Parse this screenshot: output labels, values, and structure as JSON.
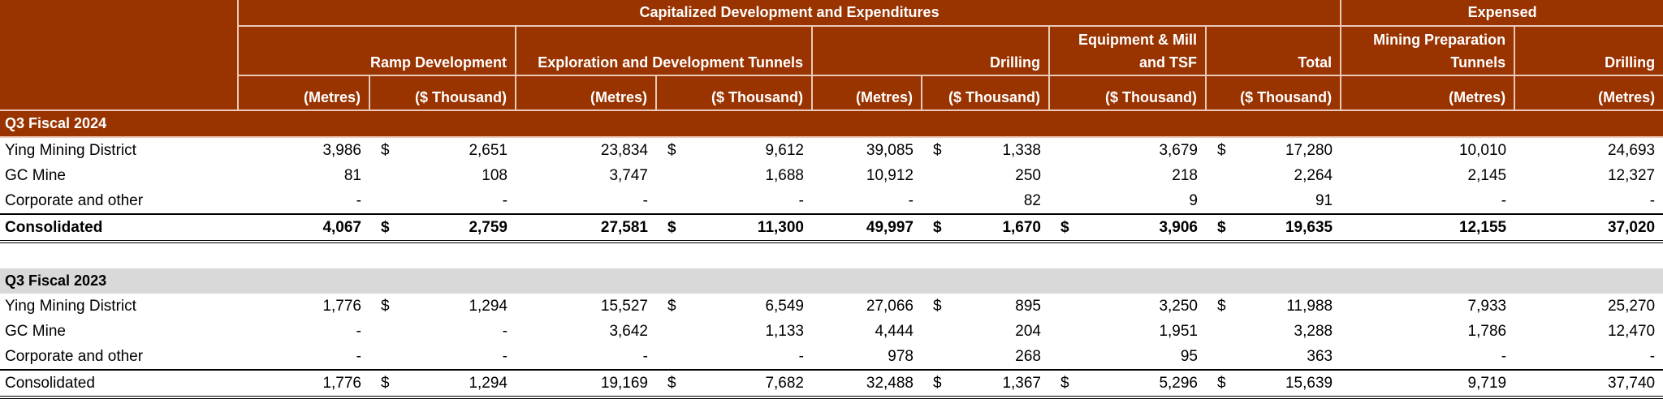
{
  "header": {
    "group_capitalized": "Capitalized Development and Expenditures",
    "group_expensed": "Expensed",
    "subgroups": [
      "Ramp Development",
      "Exploration and Development Tunnels",
      "Drilling",
      "Equipment & Mill and TSF",
      "Total",
      "Mining Preparation Tunnels",
      "Drilling"
    ],
    "units": [
      "(Metres)",
      "($ Thousand)",
      "(Metres)",
      "($ Thousand)",
      "(Metres)",
      "($ Thousand)",
      "($ Thousand)",
      "($ Thousand)",
      "(Metres)",
      "(Metres)"
    ]
  },
  "colors": {
    "header_bg": "#993300",
    "section_grey": "#d9d9d9"
  },
  "currency_symbol": "$",
  "sections": [
    {
      "title": "Q3 Fiscal 2024",
      "style": "dark",
      "rows": [
        {
          "label": "Ying Mining District",
          "values": [
            "3,986",
            "2,651",
            "23,834",
            "9,612",
            "39,085",
            "1,338",
            "3,679",
            "17,280",
            "10,010",
            "24,693"
          ],
          "currency_cols": [
            1,
            3,
            5,
            7
          ]
        },
        {
          "label": "GC Mine",
          "values": [
            "81",
            "108",
            "3,747",
            "1,688",
            "10,912",
            "250",
            "218",
            "2,264",
            "2,145",
            "12,327"
          ],
          "currency_cols": []
        },
        {
          "label": "Corporate and other",
          "values": [
            "-",
            "-",
            "-",
            "-",
            "-",
            "82",
            "9",
            "91",
            "-",
            "-"
          ],
          "currency_cols": []
        },
        {
          "label": "Consolidated",
          "values": [
            "4,067",
            "2,759",
            "27,581",
            "11,300",
            "49,997",
            "1,670",
            "3,906",
            "19,635",
            "12,155",
            "37,020"
          ],
          "currency_cols": [
            1,
            3,
            5,
            6,
            7
          ],
          "total": true,
          "bold": true
        }
      ]
    },
    {
      "title": "Q3 Fiscal 2023",
      "style": "grey",
      "rows": [
        {
          "label": "Ying Mining District",
          "values": [
            "1,776",
            "1,294",
            "15,527",
            "6,549",
            "27,066",
            "895",
            "3,250",
            "11,988",
            "7,933",
            "25,270"
          ],
          "currency_cols": [
            1,
            3,
            5,
            7
          ]
        },
        {
          "label": "GC Mine",
          "values": [
            "-",
            "-",
            "3,642",
            "1,133",
            "4,444",
            "204",
            "1,951",
            "3,288",
            "1,786",
            "12,470"
          ],
          "currency_cols": []
        },
        {
          "label": "Corporate and other",
          "values": [
            "-",
            "-",
            "-",
            "-",
            "978",
            "268",
            "95",
            "363",
            "-",
            "-"
          ],
          "currency_cols": []
        },
        {
          "label": "Consolidated",
          "values": [
            "1,776",
            "1,294",
            "19,169",
            "7,682",
            "32,488",
            "1,367",
            "5,296",
            "15,639",
            "9,719",
            "37,740"
          ],
          "currency_cols": [
            1,
            3,
            5,
            6,
            7
          ],
          "total": true,
          "bold": false
        }
      ]
    }
  ]
}
